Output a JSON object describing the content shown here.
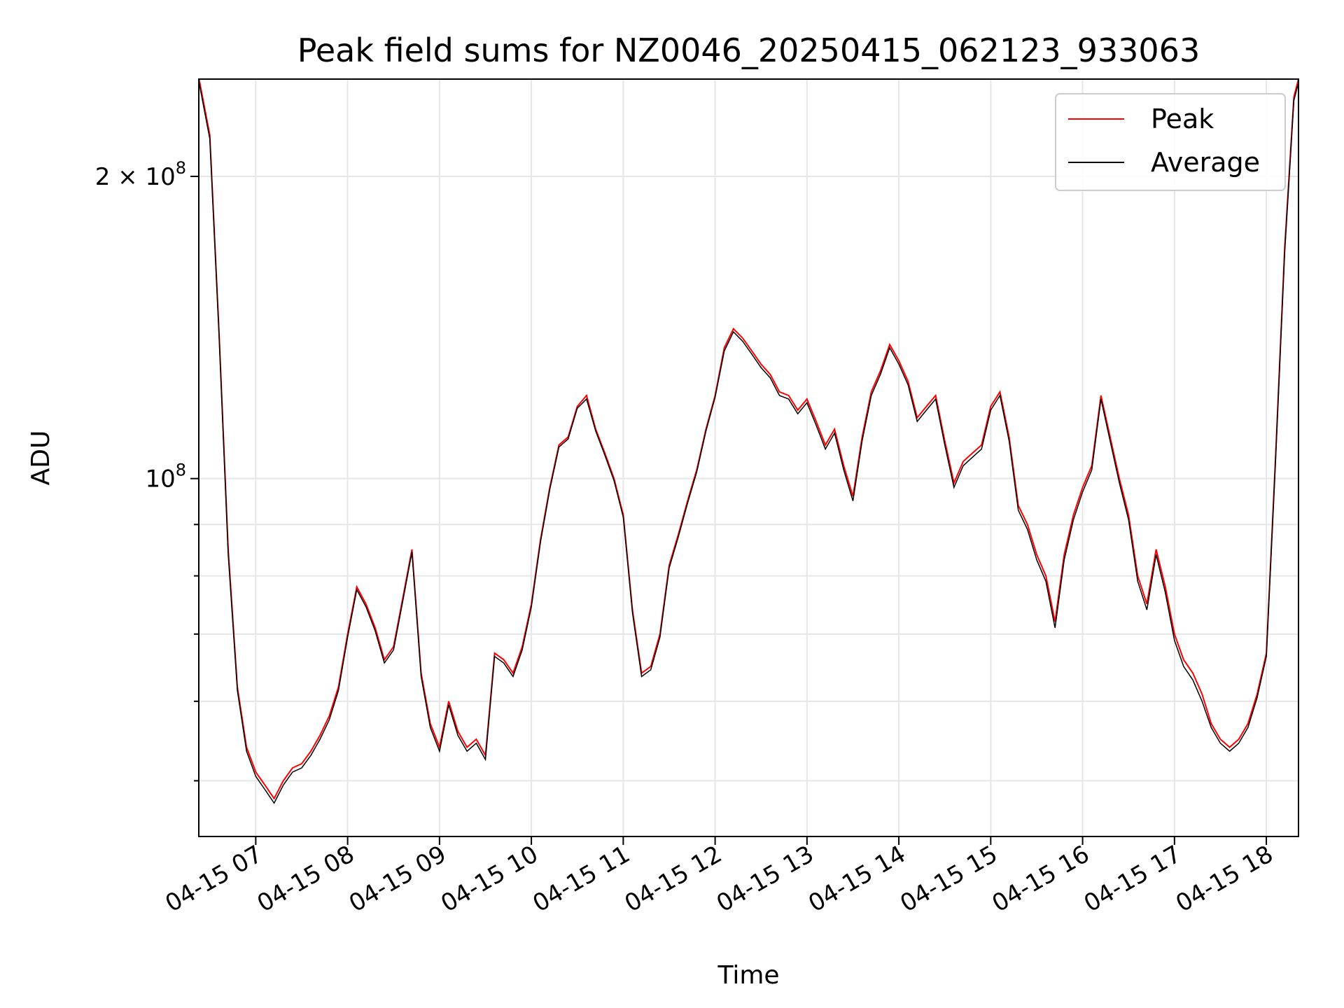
{
  "chart_data": {
    "type": "line",
    "title": "Peak field sums for NZ0046_20250415_062123_933063",
    "xlabel": "Time",
    "ylabel": "ADU",
    "yscale": "log",
    "ylim": [
      44000000,
      250000000
    ],
    "xlim_hours": [
      6.38,
      18.35
    ],
    "grid": true,
    "legend_placement": "top-right",
    "x_tick_labels": [
      {
        "label": "04-15 07",
        "hour": 7
      },
      {
        "label": "04-15 08",
        "hour": 8
      },
      {
        "label": "04-15 09",
        "hour": 9
      },
      {
        "label": "04-15 10",
        "hour": 10
      },
      {
        "label": "04-15 11",
        "hour": 11
      },
      {
        "label": "04-15 12",
        "hour": 12
      },
      {
        "label": "04-15 13",
        "hour": 13
      },
      {
        "label": "04-15 14",
        "hour": 14
      },
      {
        "label": "04-15 15",
        "hour": 15
      },
      {
        "label": "04-15 16",
        "hour": 16
      },
      {
        "label": "04-15 17",
        "hour": 17
      },
      {
        "label": "04-15 18",
        "hour": 18
      }
    ],
    "y_tick_labels": [
      {
        "label": "10",
        "exponent": "8",
        "value": 100000000
      },
      {
        "label": "2 × 10",
        "exponent": "8",
        "value": 200000000
      }
    ],
    "y_minor_ticks": [
      50000000,
      60000000,
      70000000,
      80000000,
      90000000
    ],
    "series": [
      {
        "name": "Peak",
        "color": "#ff0000",
        "x": [
          "04-15 06:23",
          "04-15 06:30",
          "04-15 06:36",
          "04-15 06:42",
          "04-15 06:48",
          "04-15 06:54",
          "04-15 07:00",
          "04-15 07:06",
          "04-15 07:12",
          "04-15 07:18",
          "04-15 07:24",
          "04-15 07:30",
          "04-15 07:36",
          "04-15 07:42",
          "04-15 07:48",
          "04-15 07:54",
          "04-15 08:00",
          "04-15 08:06",
          "04-15 08:12",
          "04-15 08:18",
          "04-15 08:24",
          "04-15 08:30",
          "04-15 08:36",
          "04-15 08:42",
          "04-15 08:48",
          "04-15 08:54",
          "04-15 09:00",
          "04-15 09:06",
          "04-15 09:12",
          "04-15 09:18",
          "04-15 09:24",
          "04-15 09:30",
          "04-15 09:36",
          "04-15 09:42",
          "04-15 09:48",
          "04-15 09:54",
          "04-15 10:00",
          "04-15 10:06",
          "04-15 10:12",
          "04-15 10:18",
          "04-15 10:24",
          "04-15 10:30",
          "04-15 10:36",
          "04-15 10:42",
          "04-15 10:48",
          "04-15 10:54",
          "04-15 11:00",
          "04-15 11:06",
          "04-15 11:12",
          "04-15 11:18",
          "04-15 11:24",
          "04-15 11:30",
          "04-15 11:36",
          "04-15 11:42",
          "04-15 11:48",
          "04-15 11:54",
          "04-15 12:00",
          "04-15 12:06",
          "04-15 12:12",
          "04-15 12:18",
          "04-15 12:24",
          "04-15 12:30",
          "04-15 12:36",
          "04-15 12:42",
          "04-15 12:48",
          "04-15 12:54",
          "04-15 13:00",
          "04-15 13:06",
          "04-15 13:12",
          "04-15 13:18",
          "04-15 13:24",
          "04-15 13:30",
          "04-15 13:36",
          "04-15 13:42",
          "04-15 13:48",
          "04-15 13:54",
          "04-15 14:00",
          "04-15 14:06",
          "04-15 14:12",
          "04-15 14:18",
          "04-15 14:24",
          "04-15 14:30",
          "04-15 14:36",
          "04-15 14:42",
          "04-15 14:48",
          "04-15 14:54",
          "04-15 15:00",
          "04-15 15:06",
          "04-15 15:12",
          "04-15 15:18",
          "04-15 15:24",
          "04-15 15:30",
          "04-15 15:36",
          "04-15 15:42",
          "04-15 15:48",
          "04-15 15:54",
          "04-15 16:00",
          "04-15 16:06",
          "04-15 16:12",
          "04-15 16:18",
          "04-15 16:24",
          "04-15 16:30",
          "04-15 16:36",
          "04-15 16:42",
          "04-15 16:48",
          "04-15 16:54",
          "04-15 17:00",
          "04-15 17:06",
          "04-15 17:12",
          "04-15 17:18",
          "04-15 17:24",
          "04-15 17:30",
          "04-15 17:36",
          "04-15 17:42",
          "04-15 17:48",
          "04-15 17:54",
          "04-15 18:00",
          "04-15 18:06",
          "04-15 18:12",
          "04-15 18:18",
          "04-15 18:21"
        ],
        "values": [
          250000000,
          220000000,
          140000000,
          85000000,
          62000000,
          54000000,
          51000000,
          49500000,
          48000000,
          50000000,
          51500000,
          52000000,
          53500000,
          55500000,
          58000000,
          62000000,
          70000000,
          78000000,
          75000000,
          71000000,
          66000000,
          68000000,
          76000000,
          85000000,
          64000000,
          57000000,
          54000000,
          60000000,
          56000000,
          54000000,
          55000000,
          53000000,
          67000000,
          66000000,
          64000000,
          68000000,
          75000000,
          87000000,
          98000000,
          108000000,
          110000000,
          118000000,
          121000000,
          112000000,
          106000000,
          100000000,
          92000000,
          74000000,
          64000000,
          65000000,
          70000000,
          82000000,
          88000000,
          95000000,
          102000000,
          112000000,
          121000000,
          135000000,
          141000000,
          138000000,
          134000000,
          130000000,
          127000000,
          122000000,
          121000000,
          117000000,
          120000000,
          114000000,
          108000000,
          112000000,
          103000000,
          96000000,
          110000000,
          122000000,
          128000000,
          136000000,
          131000000,
          125000000,
          115000000,
          118000000,
          121000000,
          109000000,
          99000000,
          104000000,
          106000000,
          108000000,
          118000000,
          122000000,
          110000000,
          94000000,
          90000000,
          84000000,
          80000000,
          72000000,
          84000000,
          92000000,
          98000000,
          103000000,
          121000000,
          110000000,
          100000000,
          92000000,
          80000000,
          75000000,
          85000000,
          78000000,
          70000000,
          66000000,
          64000000,
          61000000,
          57000000,
          55000000,
          54000000,
          55000000,
          57000000,
          61000000,
          67000000,
          105000000,
          170000000,
          240000000,
          250000000
        ]
      },
      {
        "name": "Average",
        "color": "#000000",
        "x": [
          "04-15 06:23",
          "04-15 06:30",
          "04-15 06:36",
          "04-15 06:42",
          "04-15 06:48",
          "04-15 06:54",
          "04-15 07:00",
          "04-15 07:06",
          "04-15 07:12",
          "04-15 07:18",
          "04-15 07:24",
          "04-15 07:30",
          "04-15 07:36",
          "04-15 07:42",
          "04-15 07:48",
          "04-15 07:54",
          "04-15 08:00",
          "04-15 08:06",
          "04-15 08:12",
          "04-15 08:18",
          "04-15 08:24",
          "04-15 08:30",
          "04-15 08:36",
          "04-15 08:42",
          "04-15 08:48",
          "04-15 08:54",
          "04-15 09:00",
          "04-15 09:06",
          "04-15 09:12",
          "04-15 09:18",
          "04-15 09:24",
          "04-15 09:30",
          "04-15 09:36",
          "04-15 09:42",
          "04-15 09:48",
          "04-15 09:54",
          "04-15 10:00",
          "04-15 10:06",
          "04-15 10:12",
          "04-15 10:18",
          "04-15 10:24",
          "04-15 10:30",
          "04-15 10:36",
          "04-15 10:42",
          "04-15 10:48",
          "04-15 10:54",
          "04-15 11:00",
          "04-15 11:06",
          "04-15 11:12",
          "04-15 11:18",
          "04-15 11:24",
          "04-15 11:30",
          "04-15 11:36",
          "04-15 11:42",
          "04-15 11:48",
          "04-15 11:54",
          "04-15 12:00",
          "04-15 12:06",
          "04-15 12:12",
          "04-15 12:18",
          "04-15 12:24",
          "04-15 12:30",
          "04-15 12:36",
          "04-15 12:42",
          "04-15 12:48",
          "04-15 12:54",
          "04-15 13:00",
          "04-15 13:06",
          "04-15 13:12",
          "04-15 13:18",
          "04-15 13:24",
          "04-15 13:30",
          "04-15 13:36",
          "04-15 13:42",
          "04-15 13:48",
          "04-15 13:54",
          "04-15 14:00",
          "04-15 14:06",
          "04-15 14:12",
          "04-15 14:18",
          "04-15 14:24",
          "04-15 14:30",
          "04-15 14:36",
          "04-15 14:42",
          "04-15 14:48",
          "04-15 14:54",
          "04-15 15:00",
          "04-15 15:06",
          "04-15 15:12",
          "04-15 15:18",
          "04-15 15:24",
          "04-15 15:30",
          "04-15 15:36",
          "04-15 15:42",
          "04-15 15:48",
          "04-15 15:54",
          "04-15 16:00",
          "04-15 16:06",
          "04-15 16:12",
          "04-15 16:18",
          "04-15 16:24",
          "04-15 16:30",
          "04-15 16:36",
          "04-15 16:42",
          "04-15 16:48",
          "04-15 16:54",
          "04-15 17:00",
          "04-15 17:06",
          "04-15 17:12",
          "04-15 17:18",
          "04-15 17:24",
          "04-15 17:30",
          "04-15 17:36",
          "04-15 17:42",
          "04-15 17:48",
          "04-15 17:54",
          "04-15 18:00",
          "04-15 18:06",
          "04-15 18:12",
          "04-15 18:18",
          "04-15 18:21"
        ],
        "values": [
          248000000,
          218000000,
          139000000,
          84000000,
          61500000,
          53500000,
          50500000,
          49000000,
          47500000,
          49500000,
          51000000,
          51500000,
          53000000,
          55000000,
          57500000,
          61500000,
          69500000,
          77500000,
          74500000,
          70500000,
          65500000,
          67500000,
          75500000,
          84500000,
          63500000,
          56500000,
          53500000,
          59500000,
          55500000,
          53500000,
          54500000,
          52500000,
          66500000,
          65500000,
          63500000,
          67500000,
          74500000,
          86500000,
          97500000,
          107500000,
          109500000,
          117500000,
          120000000,
          111500000,
          105500000,
          99500000,
          91500000,
          73500000,
          63500000,
          64500000,
          69500000,
          81500000,
          87500000,
          94500000,
          101500000,
          111500000,
          120500000,
          134000000,
          140000000,
          137000000,
          133000000,
          129000000,
          126000000,
          121000000,
          120000000,
          116000000,
          119000000,
          113000000,
          107000000,
          111000000,
          102000000,
          95000000,
          109000000,
          121000000,
          127000000,
          135000000,
          130000000,
          124000000,
          114000000,
          117000000,
          120000000,
          108000000,
          98000000,
          103000000,
          105000000,
          107000000,
          117000000,
          121000000,
          109000000,
          93000000,
          89000000,
          83000000,
          79000000,
          71000000,
          83000000,
          91000000,
          97000000,
          102000000,
          120000000,
          109000000,
          99000000,
          91000000,
          79000000,
          74000000,
          84000000,
          77000000,
          69000000,
          65000000,
          63000000,
          60000000,
          56500000,
          54500000,
          53500000,
          54500000,
          56500000,
          60500000,
          66500000,
          104000000,
          168000000,
          238000000,
          248000000
        ]
      }
    ]
  }
}
